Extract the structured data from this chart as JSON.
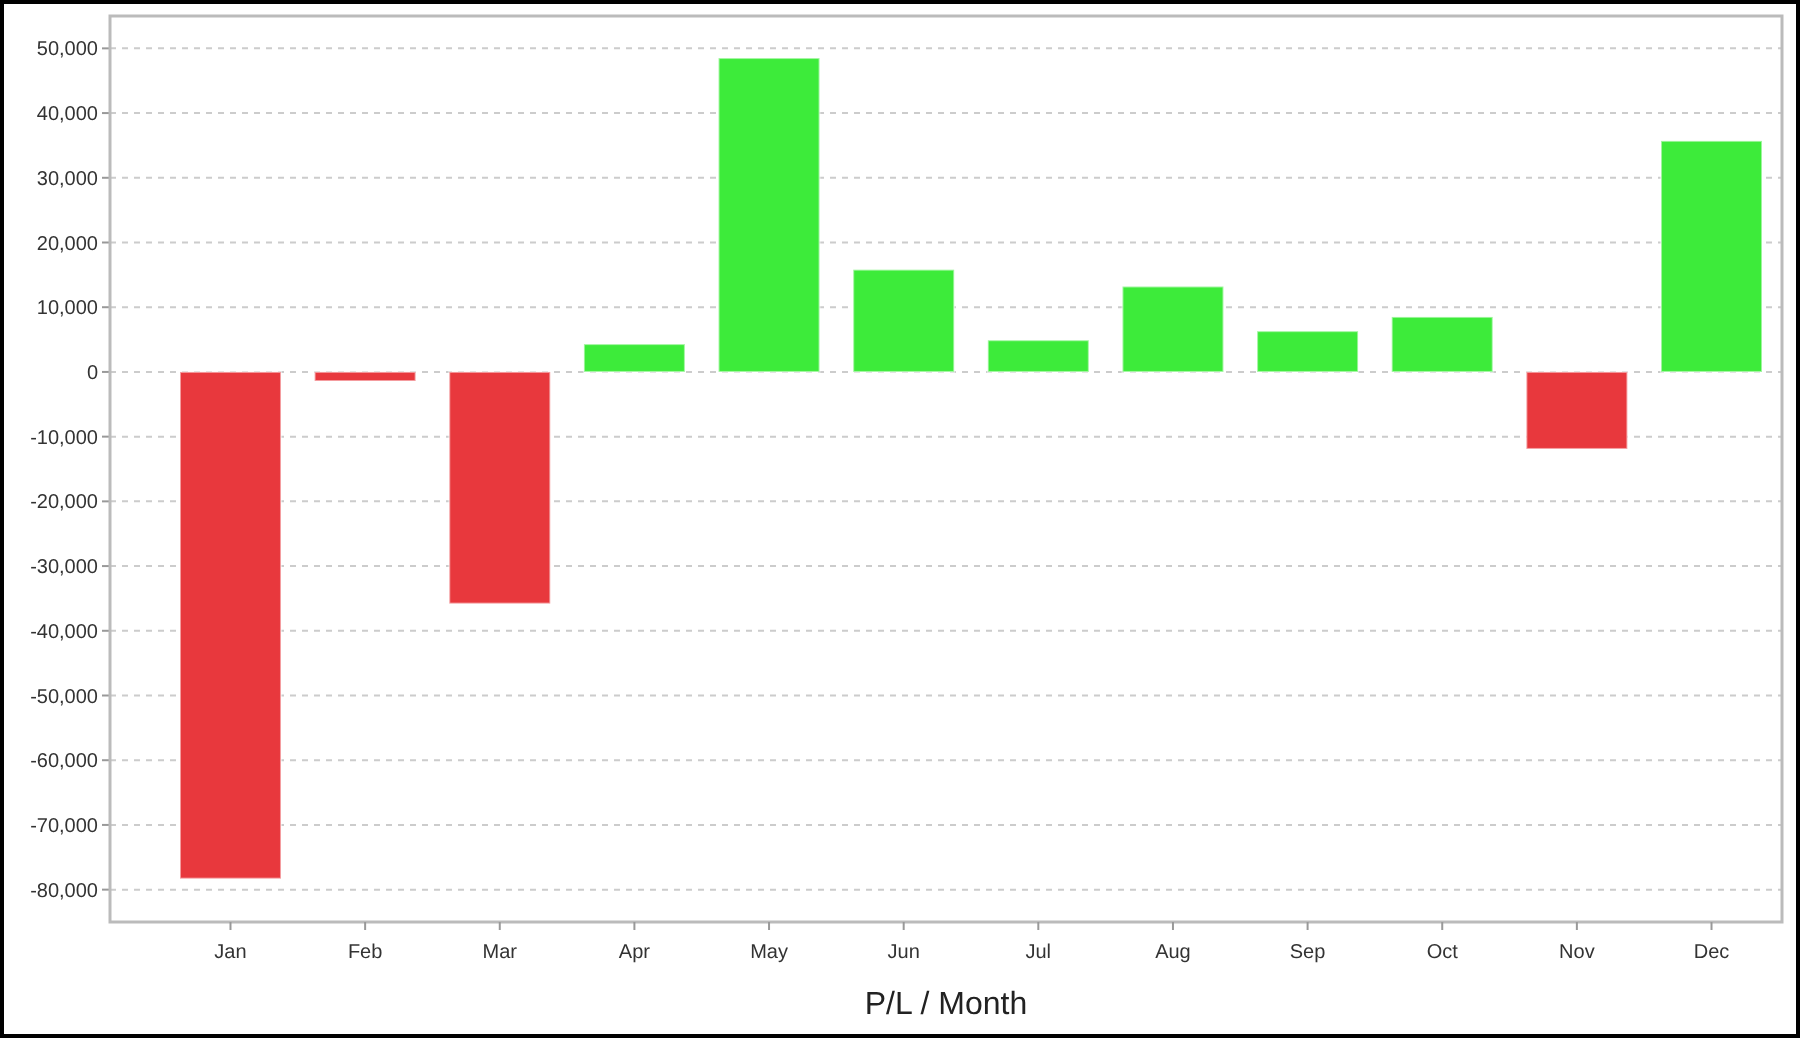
{
  "chart_data": {
    "type": "bar",
    "xlabel": "P/L / Month",
    "categories": [
      "Jan",
      "Feb",
      "Mar",
      "Apr",
      "May",
      "Jun",
      "Jul",
      "Aug",
      "Sep",
      "Oct",
      "Nov",
      "Dec"
    ],
    "values": [
      -78300,
      -1400,
      -35800,
      4300,
      48500,
      15800,
      4900,
      13200,
      6300,
      8500,
      -11900,
      35700
    ],
    "colors": [
      "#e8383d",
      "#e8383d",
      "#e8383d",
      "#3deb3a",
      "#3deb3a",
      "#3deb3a",
      "#3deb3a",
      "#3deb3a",
      "#3deb3a",
      "#3deb3a",
      "#e8383d",
      "#3deb3a"
    ],
    "ylim": [
      -85000,
      55000
    ],
    "yticks": [
      {
        "value": -80000,
        "label": "-80,000"
      },
      {
        "value": -70000,
        "label": "-70,000"
      },
      {
        "value": -60000,
        "label": "-60,000"
      },
      {
        "value": -50000,
        "label": "-50,000"
      },
      {
        "value": -40000,
        "label": "-40,000"
      },
      {
        "value": -30000,
        "label": "-30,000"
      },
      {
        "value": -20000,
        "label": "-20,000"
      },
      {
        "value": -10000,
        "label": "-10,000"
      },
      0,
      {
        "value": 10000,
        "label": "10,000"
      },
      {
        "value": 20000,
        "label": "20,000"
      },
      {
        "value": 30000,
        "label": "30,000"
      },
      {
        "value": 40000,
        "label": "40,000"
      },
      {
        "value": 50000,
        "label": "50,000"
      }
    ],
    "grid": "y"
  }
}
